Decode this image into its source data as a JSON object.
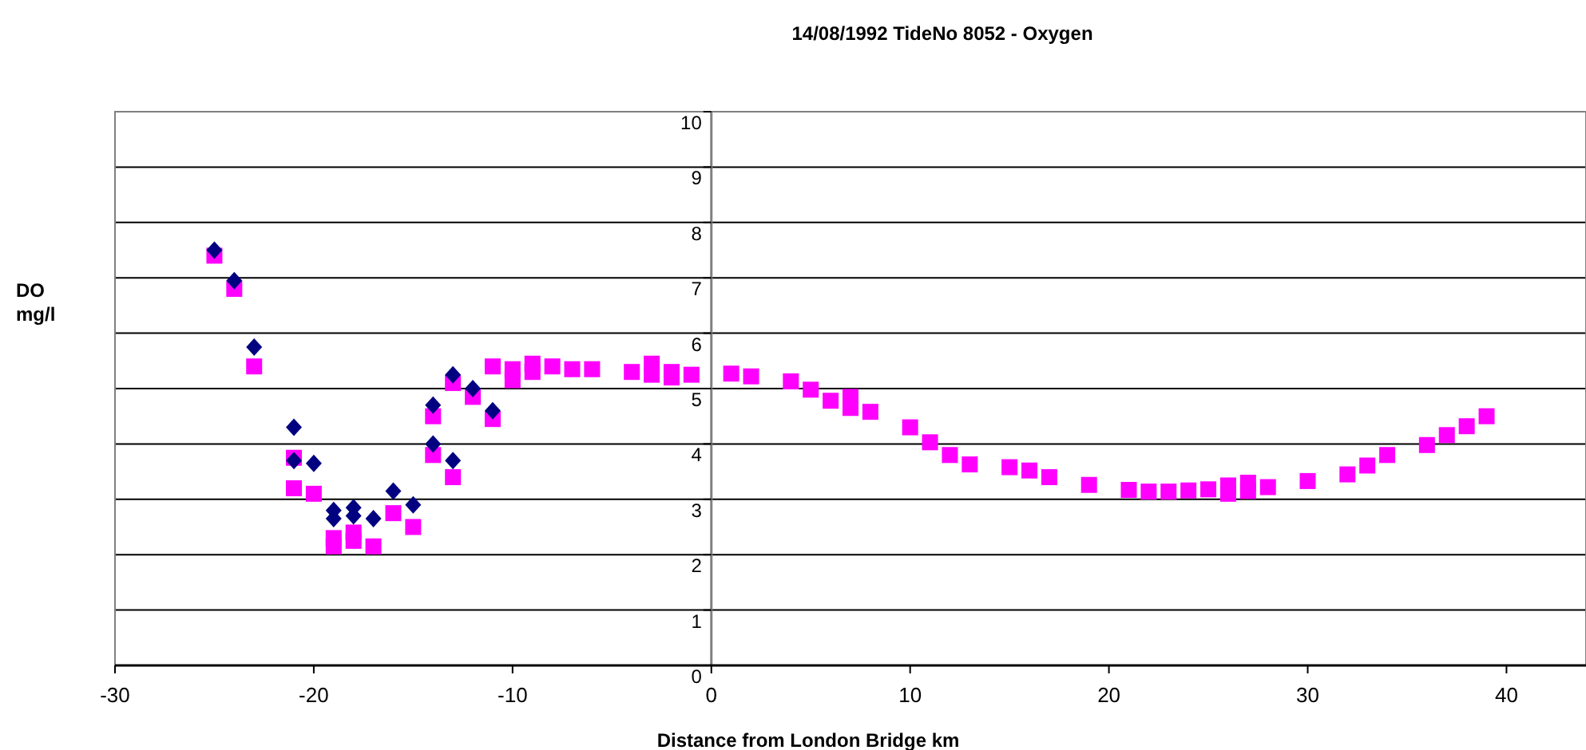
{
  "chart_data": {
    "type": "scatter",
    "title": "14/08/1992 TideNo 8052  - Oxygen",
    "xlabel": "Distance from London Bridge km",
    "ylabel": "DO\nmg/l",
    "xlim": [
      -30,
      44
    ],
    "ylim": [
      0,
      10
    ],
    "xticks": [
      -30,
      -20,
      -10,
      0,
      10,
      20,
      30,
      40
    ],
    "yticks": [
      0,
      1,
      2,
      3,
      4,
      5,
      6,
      7,
      8,
      9,
      10
    ],
    "grid": "y",
    "series": [
      {
        "color": "#000080",
        "marker": "diamond",
        "x": [
          -25,
          -24,
          -23,
          -21,
          -21,
          -20,
          -19,
          -19,
          -18,
          -18,
          -17,
          -16,
          -15,
          -14,
          -14,
          -13,
          -13,
          -12,
          -11
        ],
        "values": [
          7.5,
          6.95,
          5.75,
          4.3,
          3.7,
          3.65,
          2.8,
          2.65,
          2.85,
          2.7,
          2.65,
          3.15,
          2.9,
          4.7,
          4.0,
          5.25,
          3.7,
          5.0,
          4.6
        ]
      },
      {
        "color": "#ff00ff",
        "marker": "square",
        "x": [
          -25,
          -24,
          -23,
          -21,
          -21,
          -20,
          -19,
          -19,
          -18,
          -18,
          -17,
          -16,
          -15,
          -14,
          -14,
          -13,
          -13,
          -12,
          -11,
          -11,
          -10,
          -10,
          -9,
          -9,
          -8,
          -7,
          -6,
          -4,
          -3,
          -3,
          -2,
          -2,
          -1,
          1,
          2,
          4,
          5,
          6,
          7,
          7,
          8,
          10,
          11,
          12,
          13,
          15,
          16,
          17,
          19,
          21,
          22,
          23,
          24,
          25,
          26,
          26,
          27,
          27,
          28,
          30,
          32,
          33,
          34,
          36,
          37,
          38,
          39
        ],
        "values": [
          7.4,
          6.8,
          5.4,
          3.75,
          3.2,
          3.1,
          2.15,
          2.3,
          2.25,
          2.4,
          2.15,
          2.75,
          2.5,
          4.5,
          3.8,
          5.1,
          3.4,
          4.85,
          5.4,
          4.45,
          5.35,
          5.15,
          5.45,
          5.3,
          5.4,
          5.35,
          5.35,
          5.3,
          5.45,
          5.25,
          5.3,
          5.2,
          5.25,
          5.27,
          5.22,
          5.13,
          4.98,
          4.78,
          4.85,
          4.65,
          4.58,
          4.3,
          4.03,
          3.8,
          3.63,
          3.58,
          3.52,
          3.4,
          3.26,
          3.17,
          3.14,
          3.14,
          3.16,
          3.18,
          3.25,
          3.1,
          3.3,
          3.15,
          3.22,
          3.33,
          3.45,
          3.61,
          3.8,
          3.98,
          4.16,
          4.32,
          4.5
        ]
      }
    ]
  }
}
